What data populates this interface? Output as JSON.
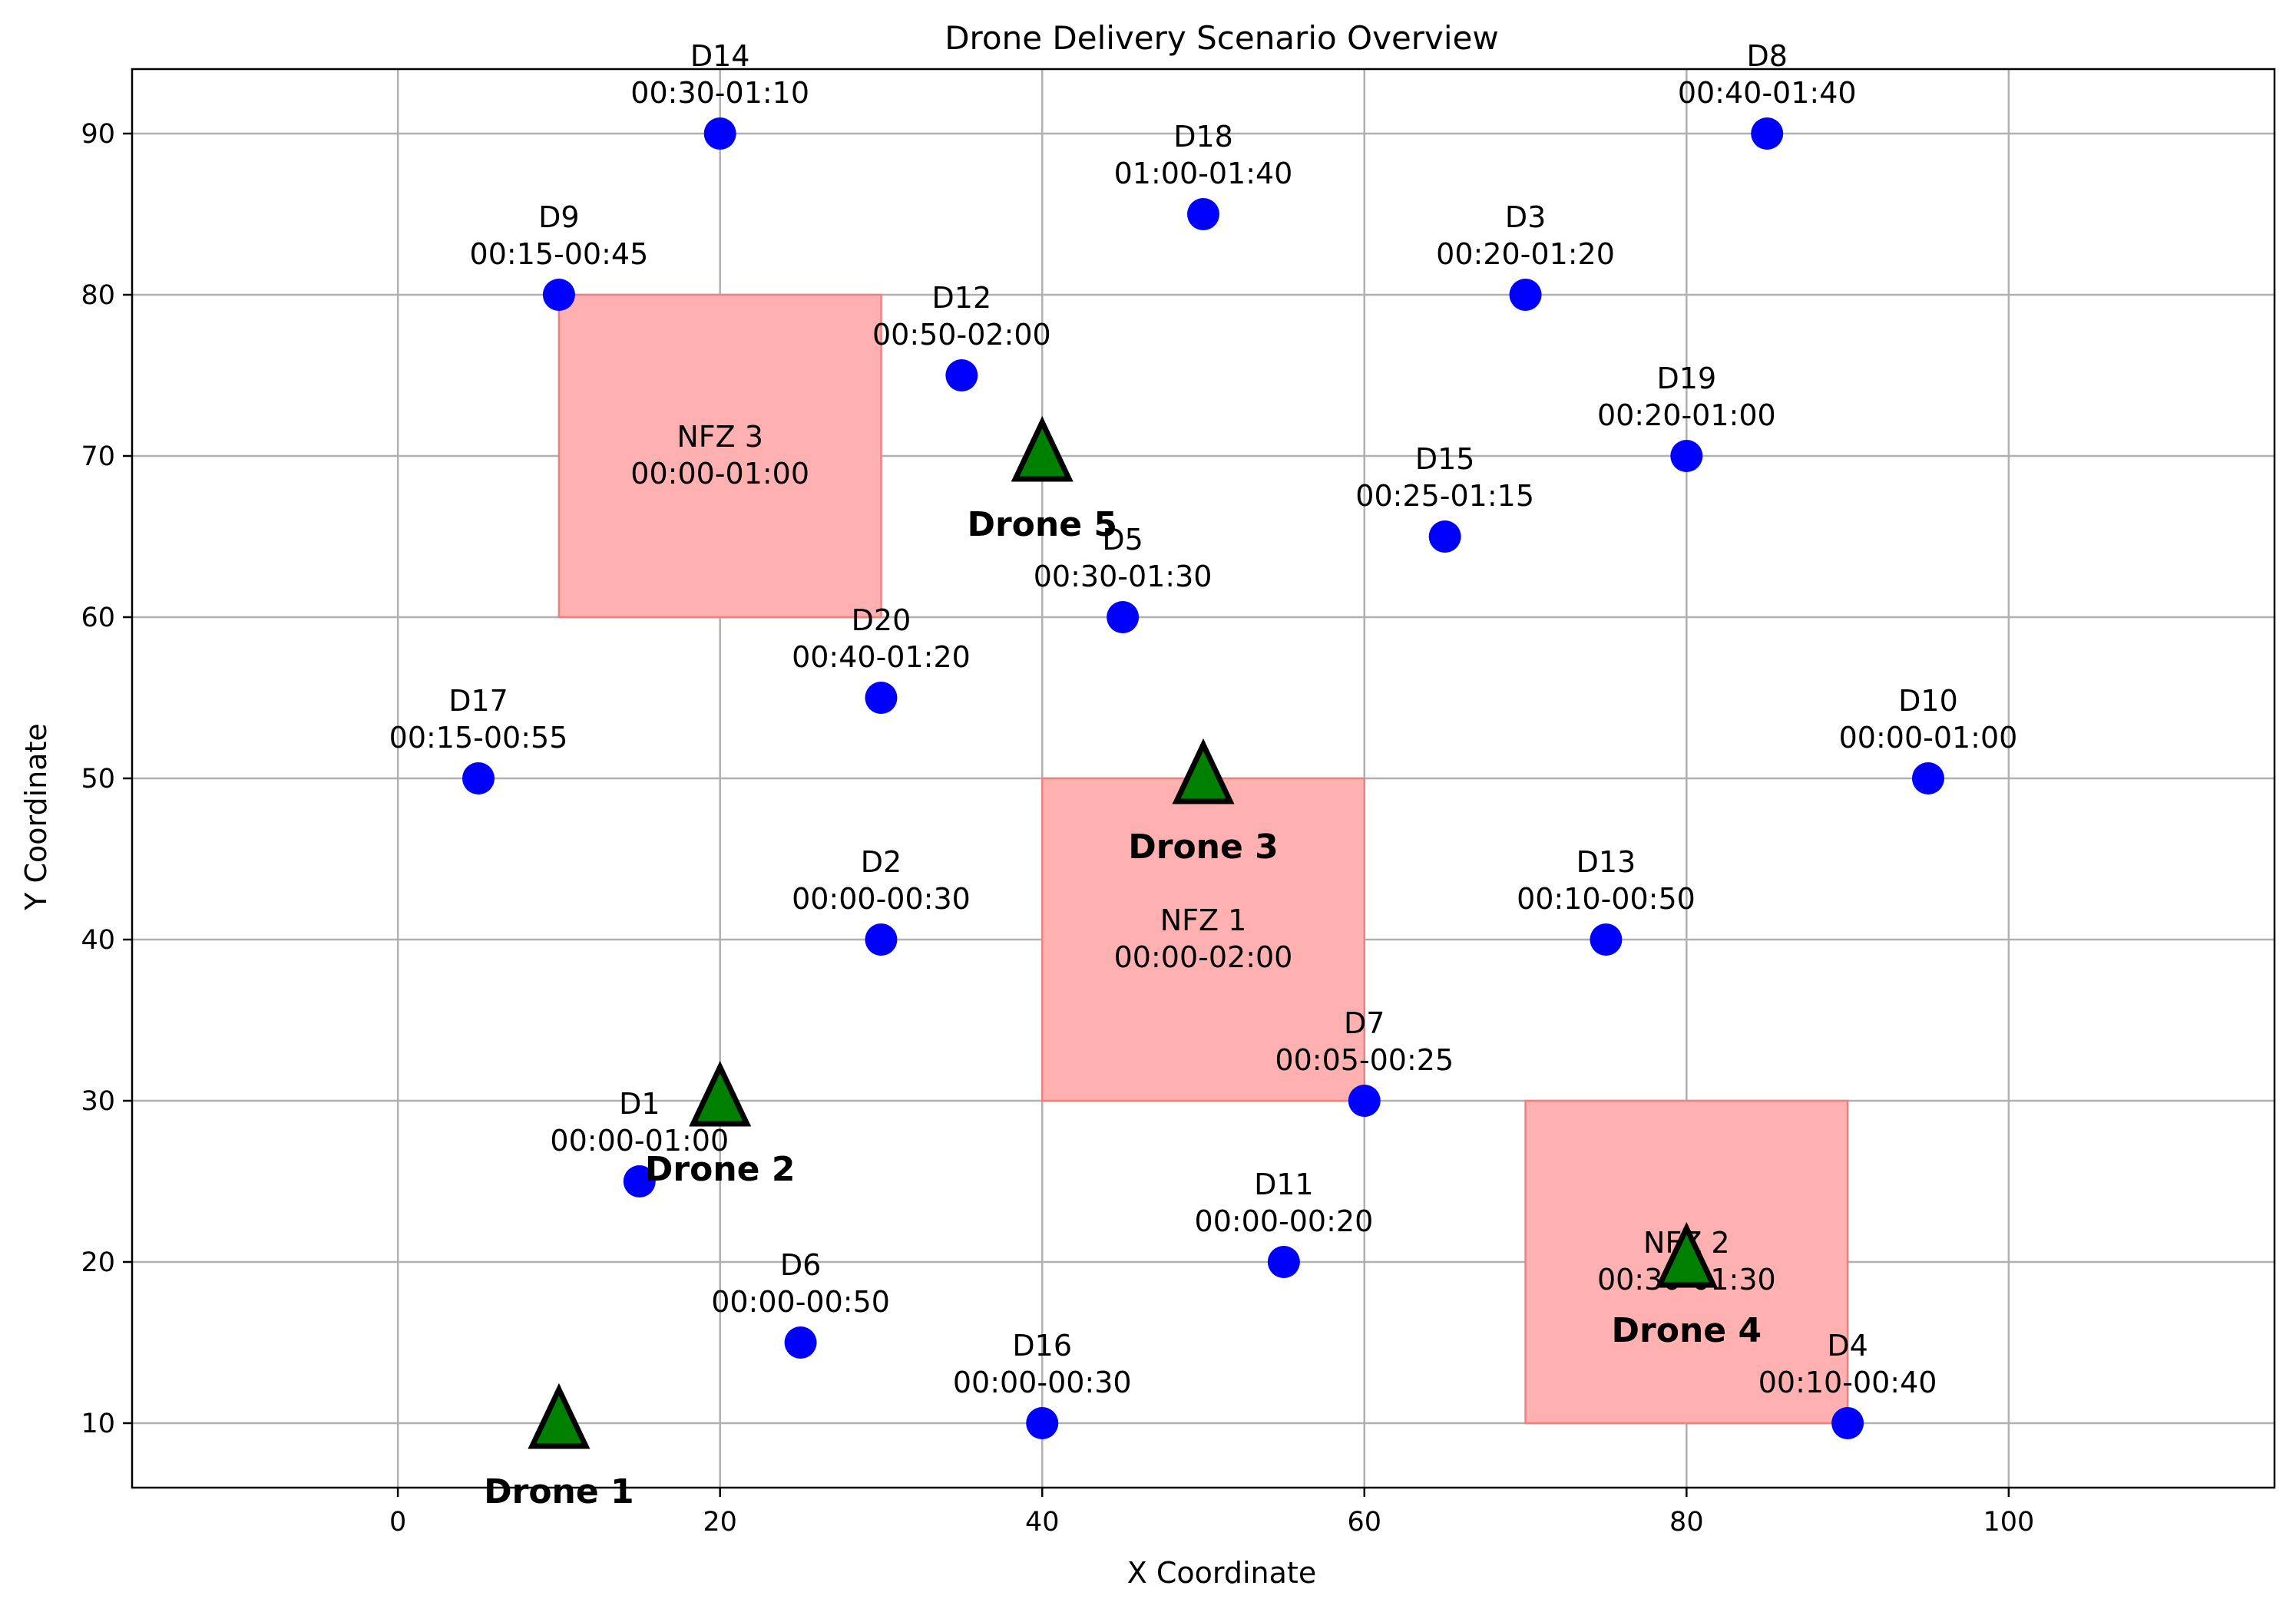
{
  "chart_data": {
    "type": "scatter",
    "title": "Drone Delivery Scenario Overview",
    "xlabel": "X Coordinate",
    "ylabel": "Y Coordinate",
    "xlim": [
      -16.5,
      116.5
    ],
    "ylim": [
      6,
      94
    ],
    "xticks": [
      0,
      20,
      40,
      60,
      80,
      100
    ],
    "yticks": [
      10,
      20,
      30,
      40,
      50,
      60,
      70,
      80,
      90
    ],
    "grid": true,
    "colors": {
      "delivery": "#0000ff",
      "drone": "#008000",
      "drone_outline": "#000000",
      "nfz_fill": "#ffb0b0",
      "nfz_edge": "#f08080"
    },
    "no_fly_zones": [
      {
        "name": "NFZ 1",
        "window": "00:00-02:00",
        "x": [
          40,
          60
        ],
        "y": [
          30,
          50
        ]
      },
      {
        "name": "NFZ 2",
        "window": "00:30-01:30",
        "x": [
          70,
          90
        ],
        "y": [
          10,
          30
        ]
      },
      {
        "name": "NFZ 3",
        "window": "00:00-01:00",
        "x": [
          10,
          30
        ],
        "y": [
          60,
          80
        ]
      }
    ],
    "deliveries": [
      {
        "name": "D1",
        "window": "00:00-01:00",
        "x": 15,
        "y": 25
      },
      {
        "name": "D2",
        "window": "00:00-00:30",
        "x": 30,
        "y": 40
      },
      {
        "name": "D3",
        "window": "00:20-01:20",
        "x": 70,
        "y": 80
      },
      {
        "name": "D4",
        "window": "00:10-00:40",
        "x": 90,
        "y": 10
      },
      {
        "name": "D5",
        "window": "00:30-01:30",
        "x": 45,
        "y": 60
      },
      {
        "name": "D6",
        "window": "00:00-00:50",
        "x": 25,
        "y": 15
      },
      {
        "name": "D7",
        "window": "00:05-00:25",
        "x": 60,
        "y": 30
      },
      {
        "name": "D8",
        "window": "00:40-01:40",
        "x": 85,
        "y": 90
      },
      {
        "name": "D9",
        "window": "00:15-00:45",
        "x": 10,
        "y": 80
      },
      {
        "name": "D10",
        "window": "00:00-01:00",
        "x": 95,
        "y": 50
      },
      {
        "name": "D11",
        "window": "00:00-00:20",
        "x": 55,
        "y": 20
      },
      {
        "name": "D12",
        "window": "00:50-02:00",
        "x": 35,
        "y": 75
      },
      {
        "name": "D13",
        "window": "00:10-00:50",
        "x": 75,
        "y": 40
      },
      {
        "name": "D14",
        "window": "00:30-01:10",
        "x": 20,
        "y": 90
      },
      {
        "name": "D15",
        "window": "00:25-01:15",
        "x": 65,
        "y": 65
      },
      {
        "name": "D16",
        "window": "00:00-00:30",
        "x": 40,
        "y": 10
      },
      {
        "name": "D17",
        "window": "00:15-00:55",
        "x": 5,
        "y": 50
      },
      {
        "name": "D18",
        "window": "01:00-01:40",
        "x": 50,
        "y": 85
      },
      {
        "name": "D19",
        "window": "00:20-01:00",
        "x": 80,
        "y": 70
      },
      {
        "name": "D20",
        "window": "00:40-01:20",
        "x": 30,
        "y": 55
      }
    ],
    "drones": [
      {
        "name": "Drone 1",
        "x": 10,
        "y": 10
      },
      {
        "name": "Drone 2",
        "x": 20,
        "y": 30
      },
      {
        "name": "Drone 3",
        "x": 50,
        "y": 50
      },
      {
        "name": "Drone 4",
        "x": 80,
        "y": 20
      },
      {
        "name": "Drone 5",
        "x": 40,
        "y": 70
      }
    ]
  }
}
